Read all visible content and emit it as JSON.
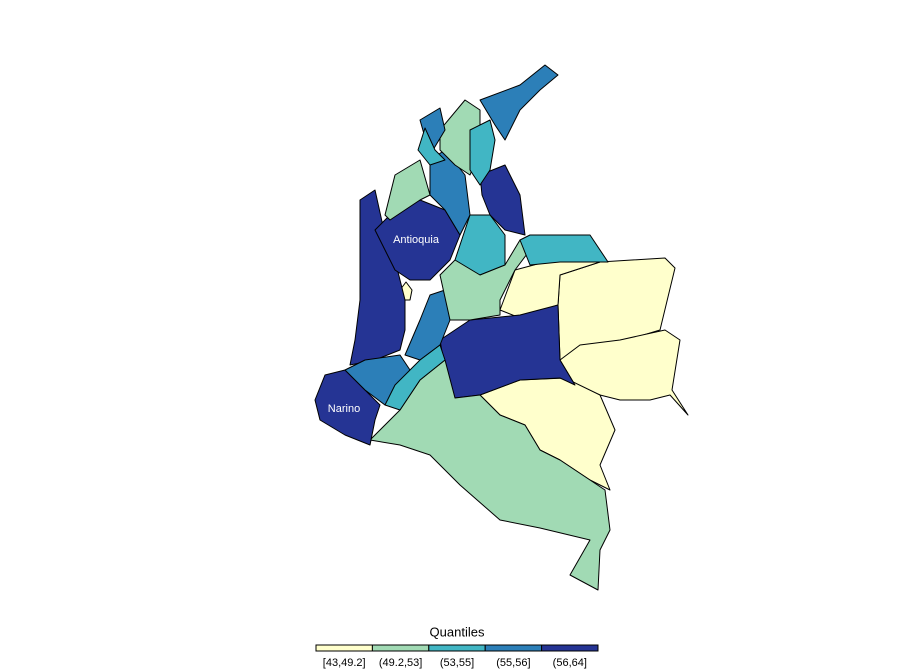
{
  "map": {
    "region_labels": [
      "Antioquia",
      "Narino"
    ],
    "legend": {
      "title": "Quantiles",
      "classes": [
        {
          "label": "[43,49.2]",
          "color": "#ffffcc"
        },
        {
          "label": "(49.2,53]",
          "color": "#a1dab4"
        },
        {
          "label": "(53,55]",
          "color": "#41b6c4"
        },
        {
          "label": "(55,56]",
          "color": "#2c7fb8"
        },
        {
          "label": "(56,64]",
          "color": "#253494"
        }
      ]
    }
  }
}
